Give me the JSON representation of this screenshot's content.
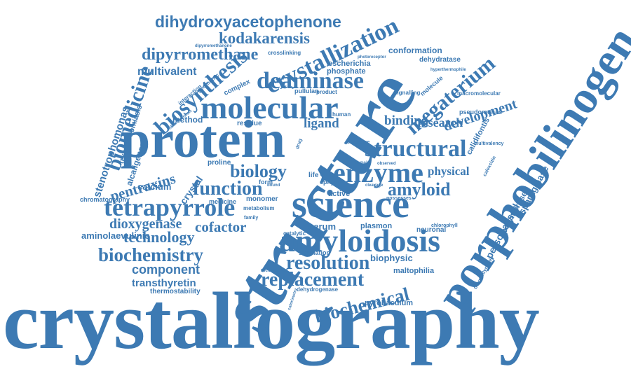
{
  "palette": {
    "primary": "#3d7ab3",
    "dark": "#24507e"
  },
  "words": [
    "crystallography",
    "structure",
    "porphobilinogen",
    "protein",
    "science",
    "molecular",
    "amyloidosis",
    "crystallization",
    "biosynthesis",
    "tetrapyrrole",
    "dihydroxyacetophenone",
    "deaminase",
    "megaterium",
    "biomedicine",
    "structural",
    "enzyme",
    "kodakarensis",
    "dipyrromethane",
    "biochemistry",
    "resolution",
    "replacement",
    "biochemical",
    "function",
    "amyloid",
    "biology",
    "development",
    "technology",
    "dioxygenase",
    "cofactor",
    "pentraxins",
    "binding",
    "research",
    "physical",
    "ligand",
    "multivalent",
    "stenotrophomonas",
    "trypanosomiasis",
    "alcaligenes",
    "transthyretin",
    "component",
    "thermostability",
    "aminolaevulinic",
    "chromatography",
    "calcium",
    "crystal",
    "method",
    "conformation",
    "escherichia",
    "phosphate",
    "personalised",
    "polymerase",
    "asparaginase",
    "biophysic",
    "maltophilia",
    "pyrobaculum",
    "calidifontis",
    "pseudomonas",
    "dehydratase",
    "hyperthermophile",
    "photoreceptor",
    "crosslinking",
    "dipyrromethanone",
    "complex",
    "geometric",
    "interaction",
    "pullulan",
    "product",
    "molecule",
    "signalling",
    "macromolecular",
    "multivalency",
    "calexcitin",
    "thermodynamic",
    "serum",
    "plasmon",
    "neuronal",
    "chlorophyll",
    "simulation",
    "dehydrogenase",
    "mechanism",
    "calorimetry",
    "active",
    "possesses",
    "monomer",
    "metabolism",
    "medicine",
    "proline",
    "catalytic",
    "fibrinogenesis",
    "residue",
    "human",
    "clearance",
    "domain",
    "observed",
    "life",
    "site",
    "cphpc",
    "form",
    "bound",
    "cleavage",
    "family",
    "drug"
  ]
}
